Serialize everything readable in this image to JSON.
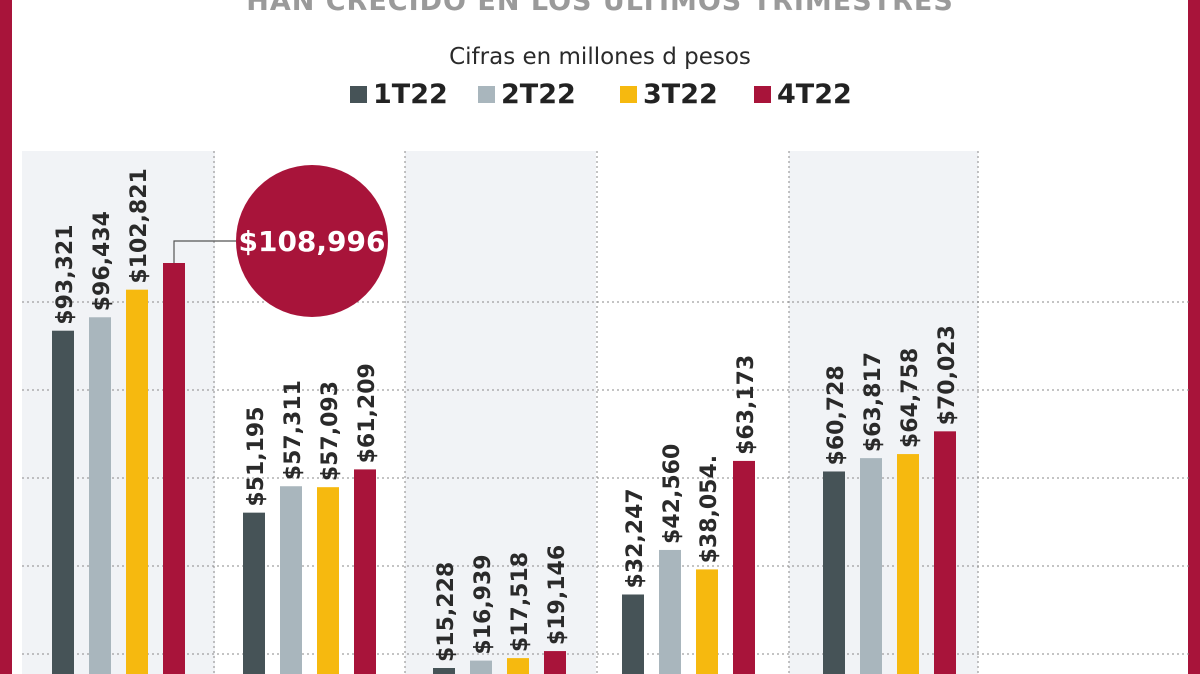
{
  "title": "HAN CRECIDO EN LOS ÚLTIMOS TRIMESTRES",
  "subtitle": "Cifras en millones d pesos",
  "legend": [
    {
      "label": "1T22",
      "color": "#465357"
    },
    {
      "label": "2T22",
      "color": "#a9b6bd"
    },
    {
      "label": "3T22",
      "color": "#f6b90f"
    },
    {
      "label": "4T22",
      "color": "#a8143a"
    }
  ],
  "callout": {
    "text": "$108,996"
  },
  "chart_data": {
    "type": "bar",
    "title": "HAN CRECIDO EN LOS ÚLTIMOS TRIMESTRES",
    "subtitle": "Cifras en millones d pesos",
    "categories": [
      "",
      "",
      "",
      "",
      ""
    ],
    "ylim": [
      0,
      120000
    ],
    "grid": true,
    "legend_position": "top",
    "series": [
      {
        "name": "1T22",
        "color": "#465357",
        "values": [
          93321,
          51195,
          15228,
          32247,
          60728
        ],
        "labels": [
          "$93,321",
          "$51,195",
          "$15,228",
          "$32,247",
          "$60,728"
        ]
      },
      {
        "name": "2T22",
        "color": "#a9b6bd",
        "values": [
          96434,
          57311,
          16939,
          42560,
          63817
        ],
        "labels": [
          "$96,434",
          "$57,311",
          "$16,939",
          "$42,560",
          "$63,817"
        ]
      },
      {
        "name": "3T22",
        "color": "#f6b90f",
        "values": [
          102821,
          57093,
          17518,
          38054,
          64758
        ],
        "labels": [
          "$102,821",
          "$57,093",
          "$17,518",
          "$38,054.",
          "$64,758"
        ]
      },
      {
        "name": "4T22",
        "color": "#a8143a",
        "values": [
          108996,
          61209,
          19146,
          63173,
          70023
        ],
        "labels": [
          "",
          "$61,209",
          "$19,146",
          "$63,173",
          "$70,023"
        ]
      }
    ]
  }
}
